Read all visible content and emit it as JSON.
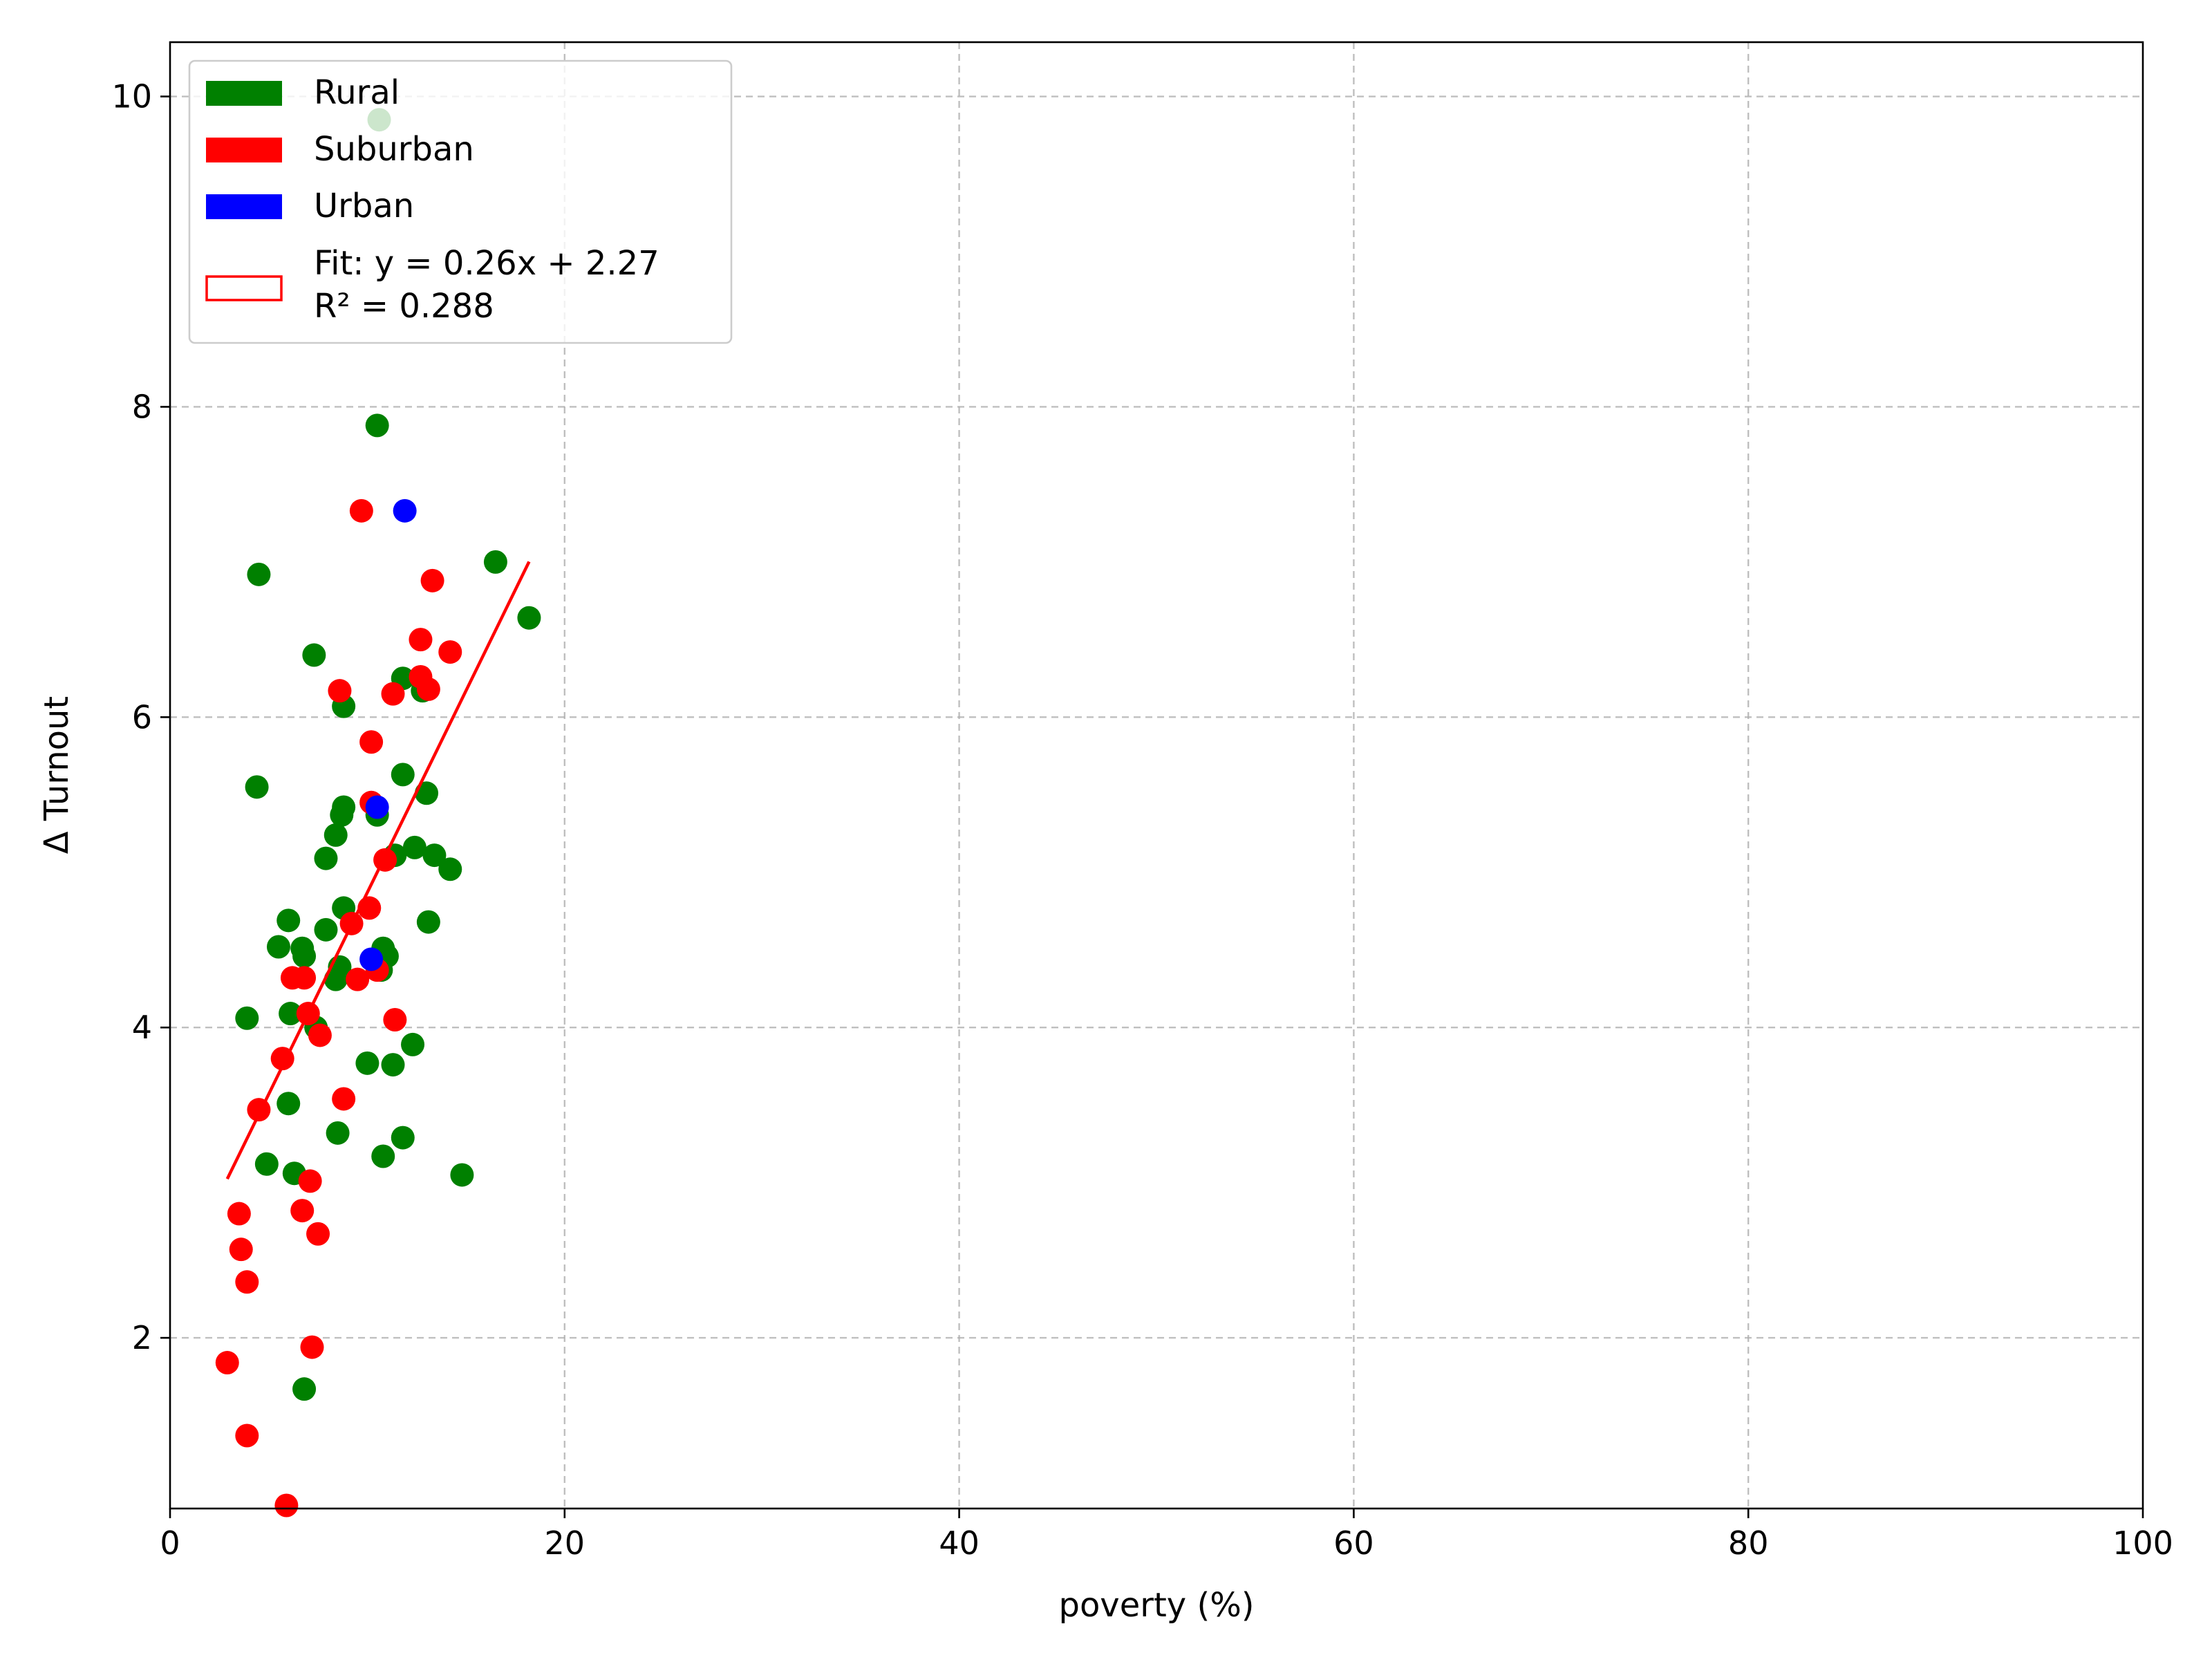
{
  "chart_data": {
    "type": "scatter",
    "title": "",
    "xlabel": "poverty (%)",
    "ylabel": "Δ Turnout",
    "xlim": [
      0,
      100
    ],
    "ylim": [
      0.9,
      10.35
    ],
    "xticks": [
      "0",
      "20",
      "40",
      "60",
      "80",
      "100"
    ],
    "yticks": [
      "2",
      "4",
      "6",
      "8",
      "10"
    ],
    "grid": true,
    "legend_position": "upper-left",
    "colors": {
      "Rural": "#008000",
      "Suburban": "#ff0000",
      "Urban": "#0000ff",
      "fit": "#ff0000"
    },
    "series": [
      {
        "name": "Rural",
        "points": [
          [
            10.6,
            9.85
          ],
          [
            10.5,
            7.88
          ],
          [
            16.5,
            7.0
          ],
          [
            4.5,
            6.92
          ],
          [
            18.2,
            6.64
          ],
          [
            7.3,
            6.4
          ],
          [
            11.8,
            6.25
          ],
          [
            12.8,
            6.17
          ],
          [
            8.8,
            6.07
          ],
          [
            11.8,
            5.63
          ],
          [
            4.4,
            5.55
          ],
          [
            13.0,
            5.51
          ],
          [
            8.8,
            5.42
          ],
          [
            8.7,
            5.37
          ],
          [
            10.5,
            5.37
          ],
          [
            8.4,
            5.24
          ],
          [
            12.4,
            5.16
          ],
          [
            13.4,
            5.11
          ],
          [
            11.4,
            5.11
          ],
          [
            7.9,
            5.09
          ],
          [
            14.2,
            5.02
          ],
          [
            8.8,
            4.77
          ],
          [
            6.0,
            4.69
          ],
          [
            13.1,
            4.68
          ],
          [
            7.9,
            4.63
          ],
          [
            5.5,
            4.52
          ],
          [
            6.7,
            4.51
          ],
          [
            10.8,
            4.51
          ],
          [
            6.8,
            4.46
          ],
          [
            11.0,
            4.46
          ],
          [
            8.6,
            4.39
          ],
          [
            10.7,
            4.37
          ],
          [
            8.4,
            4.31
          ],
          [
            3.9,
            4.06
          ],
          [
            6.1,
            4.09
          ],
          [
            7.4,
            4.0
          ],
          [
            12.3,
            3.89
          ],
          [
            10.0,
            3.77
          ],
          [
            11.3,
            3.76
          ],
          [
            6.0,
            3.51
          ],
          [
            8.5,
            3.32
          ],
          [
            11.8,
            3.29
          ],
          [
            10.8,
            3.17
          ],
          [
            4.9,
            3.12
          ],
          [
            6.3,
            3.06
          ],
          [
            14.8,
            3.05
          ],
          [
            6.8,
            1.67
          ]
        ]
      },
      {
        "name": "Suburban",
        "points": [
          [
            9.7,
            7.33
          ],
          [
            13.3,
            6.88
          ],
          [
            12.7,
            6.5
          ],
          [
            14.2,
            6.42
          ],
          [
            12.7,
            6.26
          ],
          [
            13.1,
            6.18
          ],
          [
            8.6,
            6.17
          ],
          [
            11.3,
            6.15
          ],
          [
            10.2,
            5.84
          ],
          [
            10.2,
            5.45
          ],
          [
            10.9,
            5.08
          ],
          [
            10.1,
            4.77
          ],
          [
            9.2,
            4.67
          ],
          [
            6.2,
            4.32
          ],
          [
            6.8,
            4.32
          ],
          [
            9.5,
            4.31
          ],
          [
            10.5,
            4.37
          ],
          [
            7.0,
            4.09
          ],
          [
            11.4,
            4.05
          ],
          [
            7.6,
            3.95
          ],
          [
            5.7,
            3.8
          ],
          [
            4.5,
            3.47
          ],
          [
            8.8,
            3.54
          ],
          [
            7.1,
            3.01
          ],
          [
            3.5,
            2.8
          ],
          [
            6.7,
            2.82
          ],
          [
            7.5,
            2.67
          ],
          [
            3.6,
            2.57
          ],
          [
            3.9,
            2.36
          ],
          [
            7.2,
            1.94
          ],
          [
            2.9,
            1.84
          ],
          [
            3.9,
            1.37
          ],
          [
            5.9,
            0.92
          ]
        ]
      },
      {
        "name": "Urban",
        "points": [
          [
            11.9,
            7.33
          ],
          [
            10.5,
            5.42
          ],
          [
            10.2,
            4.44
          ]
        ]
      }
    ],
    "fit": {
      "label": "Fit: y = 0.26x + 2.27",
      "r2_label": "R² = 0.288",
      "slope": 0.26,
      "intercept": 2.27,
      "x_range": [
        2.9,
        18.2
      ]
    }
  }
}
